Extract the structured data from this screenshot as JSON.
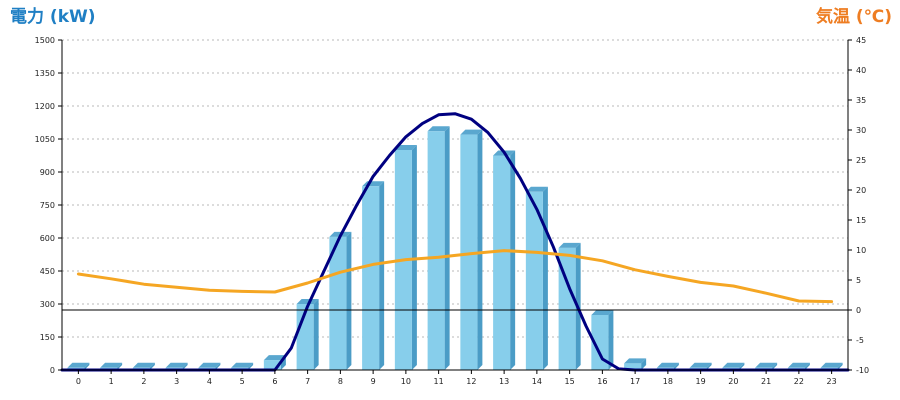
{
  "chart_data": {
    "type": "bar",
    "title": "",
    "left_axis_title": "電力 (kW)",
    "right_axis_title": "気温 (℃)",
    "left_axis_color": "#1f7fc4",
    "right_axis_color": "#ee7d22",
    "xlabel": "",
    "categories": [
      "0",
      "1",
      "2",
      "3",
      "4",
      "5",
      "6",
      "7",
      "8",
      "9",
      "10",
      "11",
      "12",
      "13",
      "14",
      "15",
      "16",
      "17",
      "18",
      "19",
      "20",
      "21",
      "22",
      "23"
    ],
    "ylim_left": [
      0,
      1500
    ],
    "yticks_left": [
      "0",
      "150",
      "300",
      "450",
      "600",
      "750",
      "900",
      "1050",
      "1200",
      "1350",
      "1500"
    ],
    "ylim_right": [
      -10,
      45
    ],
    "yticks_right": [
      "-10",
      "-5",
      "0",
      "5",
      "10",
      "15",
      "20",
      "25",
      "30",
      "35",
      "40",
      "45"
    ],
    "grid": true,
    "reference_line_right": 0,
    "series": [
      {
        "kind": "bar",
        "axis": "left",
        "color": "#87ceeb",
        "values": [
          10,
          10,
          10,
          10,
          10,
          10,
          45,
          300,
          605,
          835,
          1000,
          1085,
          1070,
          975,
          810,
          555,
          250,
          30,
          10,
          10,
          10,
          10,
          10,
          10
        ]
      },
      {
        "kind": "line",
        "axis": "left",
        "color": "#000080",
        "x": [
          -0.5,
          6,
          6.5,
          7,
          7.5,
          8,
          8.5,
          9,
          9.5,
          10,
          10.5,
          11,
          11.5,
          12,
          12.5,
          13,
          13.5,
          14,
          14.5,
          15,
          15.5,
          16,
          16.5,
          17,
          23.5
        ],
        "values": [
          0,
          0,
          100,
          290,
          450,
          610,
          750,
          880,
          975,
          1060,
          1120,
          1160,
          1165,
          1140,
          1080,
          990,
          870,
          730,
          560,
          370,
          200,
          50,
          5,
          0,
          0
        ]
      },
      {
        "kind": "line",
        "axis": "right",
        "color": "#f5a623",
        "x": [
          0,
          1,
          2,
          3,
          4,
          5,
          6,
          7,
          8,
          9,
          10,
          11,
          12,
          13,
          14,
          15,
          16,
          17,
          18,
          19,
          20,
          21,
          22,
          23
        ],
        "values": [
          6,
          5.2,
          4.3,
          3.8,
          3.3,
          3.1,
          3.0,
          4.5,
          6.3,
          7.6,
          8.4,
          8.8,
          9.4,
          9.9,
          9.6,
          9.1,
          8.2,
          6.7,
          5.6,
          4.6,
          4.0,
          2.8,
          1.5,
          1.4
        ]
      }
    ]
  }
}
